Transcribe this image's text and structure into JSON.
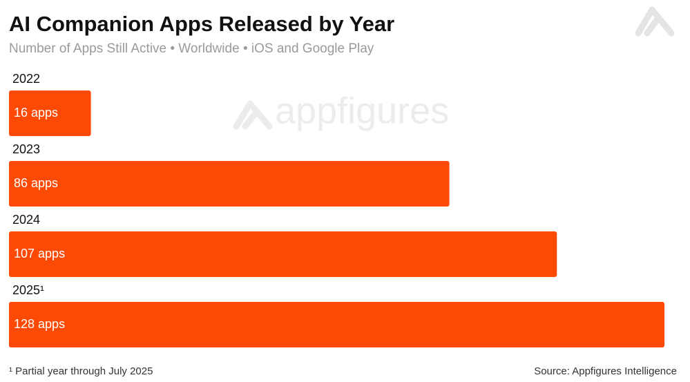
{
  "chart_data": {
    "type": "bar",
    "orientation": "horizontal",
    "title": "AI Companion Apps Released by Year",
    "subtitle": "Number of Apps Still Active • Worldwide • iOS and Google Play",
    "categories": [
      "2022",
      "2023",
      "2024",
      "2025¹"
    ],
    "values": [
      16,
      86,
      107,
      128
    ],
    "value_labels": [
      "16 apps",
      "86 apps",
      "107 apps",
      "128 apps"
    ],
    "color": "#fc4a05",
    "watermark": "appfigures",
    "footnote": "¹ Partial year through July 2025",
    "source": "Source: Appfigures Intelligence"
  }
}
